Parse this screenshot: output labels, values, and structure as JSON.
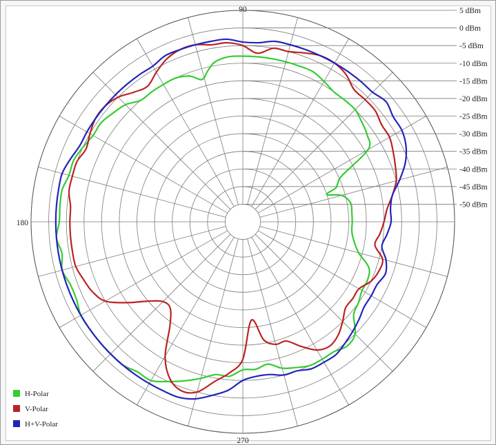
{
  "chart_data": {
    "type": "polar-line",
    "title": "",
    "angle_labels": [
      {
        "angle": 90,
        "text": "90"
      },
      {
        "angle": 180,
        "text": "180"
      },
      {
        "angle": 270,
        "text": "270"
      }
    ],
    "radial_labels": [
      "5 dBm",
      "0 dBm",
      "-5 dBm",
      "-10 dBm",
      "-15 dBm",
      "-20 dBm",
      "-25 dBm",
      "-30 dBm",
      "-35 dBm",
      "-40 dBm",
      "-45 dBm",
      "-50 dBm"
    ],
    "radial_values_dbm": [
      5,
      0,
      -5,
      -10,
      -15,
      -20,
      -25,
      -30,
      -35,
      -40,
      -45,
      -50
    ],
    "r_range_dbm": [
      -55,
      5
    ],
    "angular_grid_step_deg": 15,
    "grid": true,
    "legend_position": "bottom-left",
    "series": [
      {
        "name": "H-Polar",
        "color": "#33cc33",
        "points": [
          [
            0,
            -24
          ],
          [
            5,
            -24
          ],
          [
            10,
            -24
          ],
          [
            15,
            -26
          ],
          [
            18,
            -30
          ],
          [
            20,
            -27
          ],
          [
            22,
            -26
          ],
          [
            25,
            -24
          ],
          [
            30,
            -14
          ],
          [
            35,
            -12
          ],
          [
            40,
            -11
          ],
          [
            45,
            -10
          ],
          [
            50,
            -10
          ],
          [
            55,
            -10
          ],
          [
            60,
            -9
          ],
          [
            65,
            -8
          ],
          [
            70,
            -8
          ],
          [
            75,
            -8
          ],
          [
            80,
            -8
          ],
          [
            85,
            -8
          ],
          [
            90,
            -8
          ],
          [
            95,
            -8
          ],
          [
            100,
            -9
          ],
          [
            103,
            -11
          ],
          [
            106,
            -13
          ],
          [
            110,
            -11
          ],
          [
            115,
            -10
          ],
          [
            120,
            -10
          ],
          [
            125,
            -10
          ],
          [
            130,
            -10
          ],
          [
            135,
            -8
          ],
          [
            140,
            -7
          ],
          [
            145,
            -6
          ],
          [
            150,
            -6
          ],
          [
            155,
            -5
          ],
          [
            160,
            -4
          ],
          [
            165,
            -4
          ],
          [
            170,
            -3
          ],
          [
            175,
            -3
          ],
          [
            180,
            -3
          ],
          [
            185,
            -2
          ],
          [
            190,
            -3
          ],
          [
            195,
            -2
          ],
          [
            200,
            -3
          ],
          [
            205,
            -3
          ],
          [
            210,
            -2
          ],
          [
            215,
            -2
          ],
          [
            220,
            -2
          ],
          [
            225,
            -2
          ],
          [
            230,
            -2
          ],
          [
            235,
            -3
          ],
          [
            240,
            -3
          ],
          [
            245,
            -5
          ],
          [
            250,
            -7
          ],
          [
            255,
            -9
          ],
          [
            260,
            -11
          ],
          [
            265,
            -11
          ],
          [
            270,
            -13
          ],
          [
            275,
            -13
          ],
          [
            280,
            -14
          ],
          [
            285,
            -12
          ],
          [
            290,
            -11
          ],
          [
            295,
            -10
          ],
          [
            300,
            -10
          ],
          [
            305,
            -10
          ],
          [
            310,
            -9
          ],
          [
            315,
            -10
          ],
          [
            320,
            -14
          ],
          [
            325,
            -15
          ],
          [
            330,
            -16
          ],
          [
            335,
            -16
          ],
          [
            340,
            -17
          ],
          [
            345,
            -21
          ],
          [
            350,
            -23
          ],
          [
            355,
            -24
          ]
        ]
      },
      {
        "name": "V-Polar",
        "color": "#bb2222",
        "points": [
          [
            0,
            -15
          ],
          [
            5,
            -14
          ],
          [
            10,
            -12
          ],
          [
            15,
            -10
          ],
          [
            20,
            -9
          ],
          [
            25,
            -8
          ],
          [
            30,
            -7
          ],
          [
            35,
            -7
          ],
          [
            40,
            -6
          ],
          [
            45,
            -6
          ],
          [
            50,
            -6
          ],
          [
            55,
            -4
          ],
          [
            60,
            -3
          ],
          [
            65,
            -3
          ],
          [
            70,
            -4
          ],
          [
            75,
            -5
          ],
          [
            80,
            -5
          ],
          [
            85,
            -7
          ],
          [
            90,
            -5
          ],
          [
            95,
            -4
          ],
          [
            100,
            -4
          ],
          [
            105,
            -3
          ],
          [
            110,
            -3
          ],
          [
            115,
            -4
          ],
          [
            120,
            -6
          ],
          [
            125,
            -8
          ],
          [
            130,
            -7
          ],
          [
            135,
            -5
          ],
          [
            140,
            -4
          ],
          [
            145,
            -4
          ],
          [
            150,
            -5
          ],
          [
            155,
            -6
          ],
          [
            160,
            -5
          ],
          [
            165,
            -5
          ],
          [
            170,
            -5
          ],
          [
            175,
            -6
          ],
          [
            180,
            -6
          ],
          [
            185,
            -6
          ],
          [
            190,
            -6
          ],
          [
            195,
            -6
          ],
          [
            200,
            -7
          ],
          [
            205,
            -8
          ],
          [
            210,
            -10
          ],
          [
            215,
            -15
          ],
          [
            220,
            -20
          ],
          [
            225,
            -23
          ],
          [
            230,
            -23
          ],
          [
            235,
            -19
          ],
          [
            240,
            -11
          ],
          [
            245,
            -6
          ],
          [
            250,
            -4
          ],
          [
            255,
            -5
          ],
          [
            260,
            -9
          ],
          [
            265,
            -12
          ],
          [
            270,
            -16
          ],
          [
            275,
            -27
          ],
          [
            280,
            -21
          ],
          [
            285,
            -19
          ],
          [
            290,
            -19
          ],
          [
            295,
            -16
          ],
          [
            300,
            -13
          ],
          [
            305,
            -12
          ],
          [
            310,
            -13
          ],
          [
            315,
            -15
          ],
          [
            320,
            -17
          ],
          [
            325,
            -17
          ],
          [
            330,
            -17
          ],
          [
            335,
            -15
          ],
          [
            340,
            -14
          ],
          [
            345,
            -14
          ],
          [
            350,
            -17
          ],
          [
            355,
            -16
          ]
        ]
      },
      {
        "name": "H+V-Polar",
        "color": "#2222bb",
        "points": [
          [
            0,
            -13
          ],
          [
            5,
            -13
          ],
          [
            10,
            -12
          ],
          [
            15,
            -9
          ],
          [
            20,
            -6
          ],
          [
            25,
            -4
          ],
          [
            30,
            -3
          ],
          [
            35,
            -3
          ],
          [
            40,
            -2
          ],
          [
            45,
            -3
          ],
          [
            50,
            -3
          ],
          [
            55,
            -3
          ],
          [
            60,
            -3
          ],
          [
            65,
            -3
          ],
          [
            70,
            -3
          ],
          [
            75,
            -3
          ],
          [
            80,
            -3
          ],
          [
            85,
            -4
          ],
          [
            90,
            -4
          ],
          [
            95,
            -3
          ],
          [
            100,
            -3
          ],
          [
            105,
            -3
          ],
          [
            110,
            -3
          ],
          [
            115,
            -3
          ],
          [
            120,
            -4
          ],
          [
            125,
            -4
          ],
          [
            130,
            -4
          ],
          [
            135,
            -4
          ],
          [
            140,
            -4
          ],
          [
            145,
            -4
          ],
          [
            150,
            -4
          ],
          [
            155,
            -4
          ],
          [
            160,
            -3
          ],
          [
            165,
            -2
          ],
          [
            170,
            -2
          ],
          [
            175,
            -2
          ],
          [
            180,
            -2
          ],
          [
            185,
            -2
          ],
          [
            190,
            -2
          ],
          [
            195,
            -2
          ],
          [
            200,
            -2
          ],
          [
            205,
            -2
          ],
          [
            210,
            -2
          ],
          [
            215,
            -2
          ],
          [
            220,
            -2
          ],
          [
            225,
            -2
          ],
          [
            230,
            -2
          ],
          [
            235,
            -2
          ],
          [
            240,
            -2
          ],
          [
            245,
            -2
          ],
          [
            250,
            -2
          ],
          [
            255,
            -3
          ],
          [
            260,
            -5
          ],
          [
            265,
            -7
          ],
          [
            270,
            -10
          ],
          [
            275,
            -11
          ],
          [
            280,
            -11
          ],
          [
            285,
            -10
          ],
          [
            290,
            -10
          ],
          [
            295,
            -9
          ],
          [
            300,
            -9
          ],
          [
            305,
            -9
          ],
          [
            310,
            -10
          ],
          [
            315,
            -11
          ],
          [
            320,
            -12
          ],
          [
            325,
            -13
          ],
          [
            330,
            -13
          ],
          [
            335,
            -13
          ],
          [
            340,
            -12
          ],
          [
            345,
            -13
          ],
          [
            350,
            -15
          ],
          [
            355,
            -14
          ]
        ]
      }
    ]
  }
}
